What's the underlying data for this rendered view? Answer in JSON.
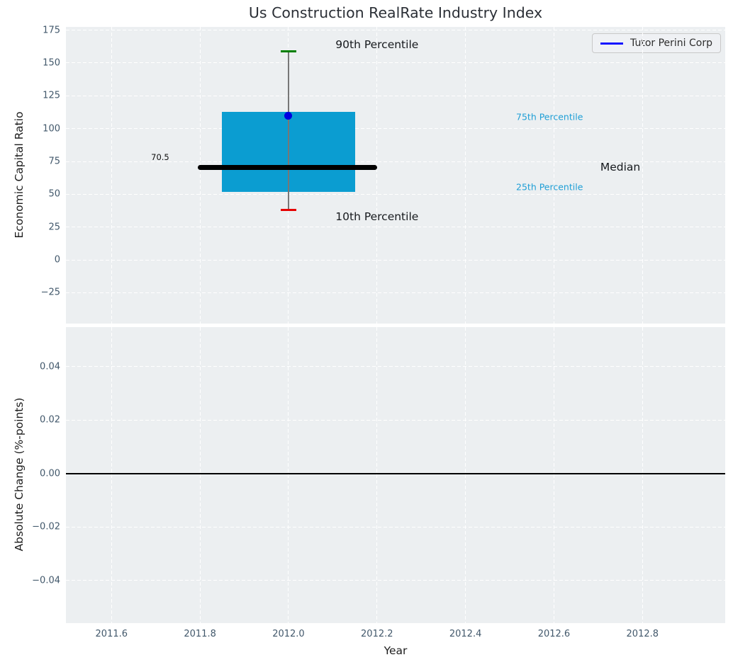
{
  "figure": {
    "background": "#ffffff",
    "axes_background": "#eceff1",
    "grid_color": "#ffffff",
    "tick_color": "#42586b",
    "title_color": "#2b2f36"
  },
  "chart_data": [
    {
      "id": "top",
      "type": "boxplot",
      "title": "Us Construction RealRate Industry Index",
      "ylabel": "Economic Capital Ratio",
      "grid": true,
      "xlim": [
        2011.497,
        2012.987
      ],
      "ylim": [
        -48.5,
        177.5
      ],
      "xticks": [
        2011.6,
        2011.8,
        2012.0,
        2012.2,
        2012.4,
        2012.6,
        2012.8
      ],
      "yticks": [
        175,
        150,
        125,
        100,
        75,
        50,
        25,
        0,
        -25
      ],
      "ytick_labels": [
        "175",
        "150",
        "125",
        "100",
        "75",
        "50",
        "25",
        "0",
        "−25"
      ],
      "box": {
        "x": 2012.0,
        "left": 2011.85,
        "right": 2012.15,
        "q1": 52,
        "median": 70.5,
        "q3": 113,
        "p10": 38,
        "p90": 159,
        "median_span": [
          2011.795,
          2012.2
        ],
        "cap_halfwidth": 0.017,
        "fill_color": "#0b9dd1",
        "median_color": "#000000",
        "whisker_color": "#777777",
        "p90_cap_color": "#008000",
        "p10_cap_color": "#e60000",
        "median_label": "70.5"
      },
      "point": {
        "series": "Tutor Perini Corp",
        "x": 2012.0,
        "y": 110,
        "color": "#0000e0"
      },
      "annotations": [
        {
          "text": "90th Percentile",
          "x": 2012.2,
          "y": 164,
          "style": "big-black"
        },
        {
          "text": "10th Percentile",
          "x": 2012.2,
          "y": 33,
          "style": "big-black"
        },
        {
          "text": "75th Percentile",
          "x": 2012.59,
          "y": 109,
          "style": "small-cyan"
        },
        {
          "text": "25th Percentile",
          "x": 2012.59,
          "y": 55.5,
          "style": "small-cyan"
        },
        {
          "text": "Median",
          "x": 2012.75,
          "y": 70.5,
          "style": "big-black"
        },
        {
          "text": "70.5",
          "x": 2011.71,
          "y": 78,
          "style": "tiny-black"
        }
      ],
      "legend": {
        "position": "upper right",
        "entries": [
          {
            "label": "Tutor Perini Corp",
            "color": "#1414ff"
          }
        ]
      }
    },
    {
      "id": "bottom",
      "type": "line",
      "xlabel": "Year",
      "ylabel": "Absolute Change (%-points)",
      "grid": true,
      "xlim": [
        2011.497,
        2012.987
      ],
      "ylim": [
        -0.056,
        0.0548
      ],
      "xticks": [
        2011.6,
        2011.8,
        2012.0,
        2012.2,
        2012.4,
        2012.6,
        2012.8
      ],
      "xtick_labels": [
        "2011.6",
        "2011.8",
        "2012.0",
        "2012.2",
        "2012.4",
        "2012.6",
        "2012.8"
      ],
      "yticks": [
        0.04,
        0.02,
        0.0,
        -0.02,
        -0.04
      ],
      "ytick_labels": [
        "0.04",
        "0.02",
        "0.00",
        "−0.02",
        "−0.04"
      ],
      "zero_line": {
        "y": 0.0,
        "color": "#000000"
      }
    }
  ]
}
